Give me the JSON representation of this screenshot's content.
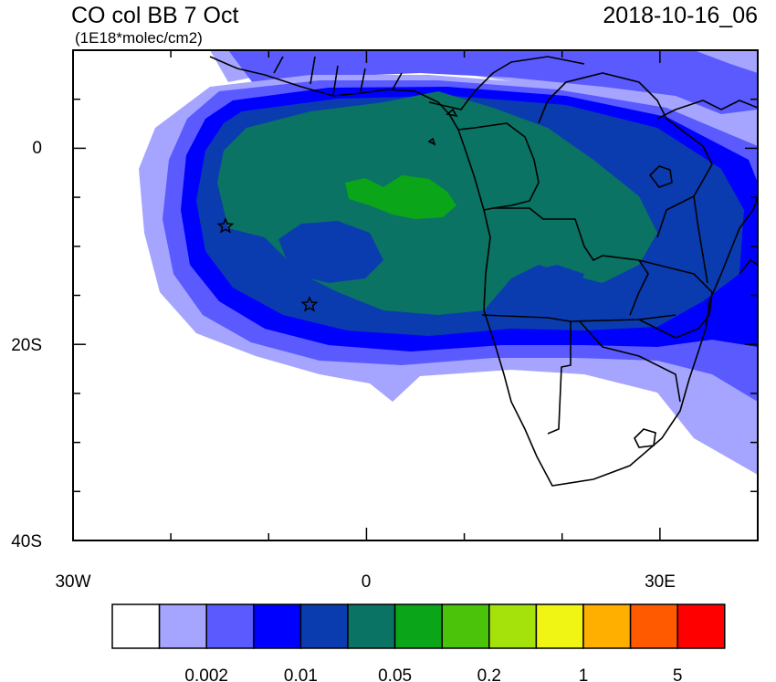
{
  "title": "CO col BB 7 Oct",
  "units": "(1E18*molec/cm2)",
  "timestamp": "2018-10-16_06",
  "axes": {
    "y_ticks": [
      "0",
      "20S",
      "40S"
    ],
    "x_ticks": [
      "30W",
      "0",
      "30E"
    ]
  },
  "colorbar": {
    "colors": [
      "#ffffff",
      "#a5a5ff",
      "#5a5aff",
      "#0000ff",
      "#0a3caf",
      "#0a7364",
      "#0aa519",
      "#4bc30a",
      "#a5e10a",
      "#f0f514",
      "#ffaf00",
      "#ff5a00",
      "#ff0000"
    ],
    "labels": [
      "0.002",
      "0.01",
      "0.05",
      "0.2",
      "1",
      "5"
    ]
  },
  "chart_data": {
    "type": "heatmap",
    "title": "CO col BB 7 Oct",
    "subtitle": "(1E18*molec/cm2)",
    "timestamp": "2018-10-16_06",
    "lon_range": [
      -30,
      40
    ],
    "lat_range": [
      -40,
      10
    ],
    "x_tick_labels": [
      "30W",
      "0",
      "30E"
    ],
    "y_tick_labels": [
      "0",
      "20S",
      "40S"
    ],
    "colorbar_labels": [
      "0.002",
      "0.01",
      "0.05",
      "0.2",
      "1",
      "5"
    ],
    "markers": [
      {
        "symbol": "star",
        "lon": -14.5,
        "lat": -8
      },
      {
        "symbol": "star",
        "lon": -5.7,
        "lat": -16
      }
    ]
  }
}
